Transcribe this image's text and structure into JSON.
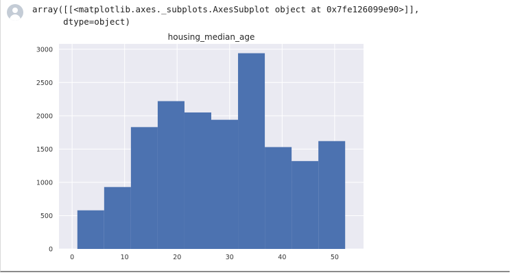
{
  "output": {
    "lines": [
      "array([[<matplotlib.axes._subplots.AxesSubplot object at 0x7fe126099e90>]],",
      "      dtype=object)"
    ]
  },
  "icons": {
    "avatar": "user-avatar-icon"
  },
  "colors": {
    "bar": "#4c72b0",
    "axes_bg": "#eaeaf2",
    "grid": "#ffffff"
  },
  "chart_data": {
    "type": "bar",
    "title": "housing_median_age",
    "xlabel": "",
    "ylabel": "",
    "bin_edges": [
      1,
      6.1,
      11.2,
      16.3,
      21.4,
      26.5,
      31.6,
      36.7,
      41.8,
      46.9,
      52
    ],
    "values": [
      580,
      930,
      1830,
      2220,
      2050,
      1940,
      2940,
      1530,
      1320,
      1620
    ],
    "xlim": [
      -2.5,
      55.5
    ],
    "ylim": [
      0,
      3080
    ],
    "xticks": [
      0,
      10,
      20,
      30,
      40,
      50
    ],
    "yticks": [
      0,
      500,
      1000,
      1500,
      2000,
      2500,
      3000
    ],
    "grid": true
  }
}
